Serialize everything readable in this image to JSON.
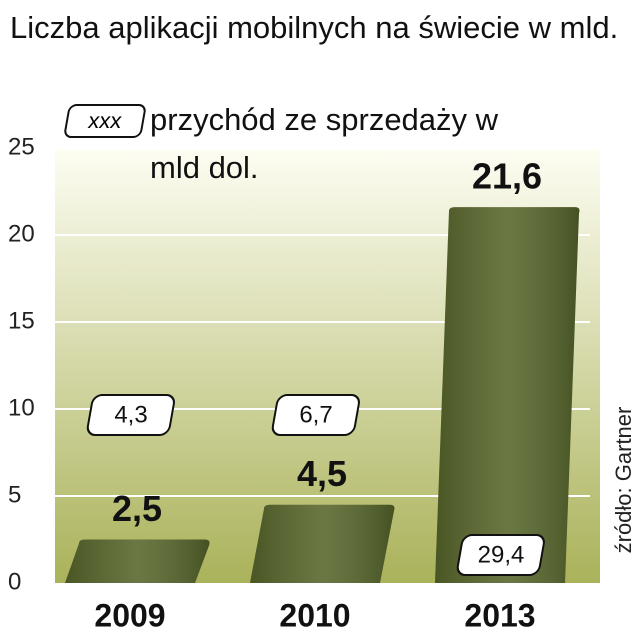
{
  "chart_data": {
    "type": "bar",
    "title": "Liczba aplikacji mobilnych na świecie w mld.",
    "legend_key": "xxx",
    "source": "źródło: Gartner",
    "categories": [
      "2009",
      "2010",
      "2013"
    ],
    "series": [
      {
        "color": "#56652a",
        "values": [
          2.5,
          4.5,
          21.6
        ],
        "value_labels": [
          "2,5",
          "4,5",
          "21,6"
        ]
      },
      {
        "name": "przychód ze sprzedaży w mld dol.",
        "values": [
          4.3,
          6.7,
          29.4
        ],
        "value_labels": [
          "4,3",
          "6,7",
          "29,4"
        ]
      }
    ],
    "ylim": [
      0,
      25
    ],
    "yticks": [
      0,
      5,
      10,
      15,
      20,
      25
    ],
    "grid": true
  }
}
